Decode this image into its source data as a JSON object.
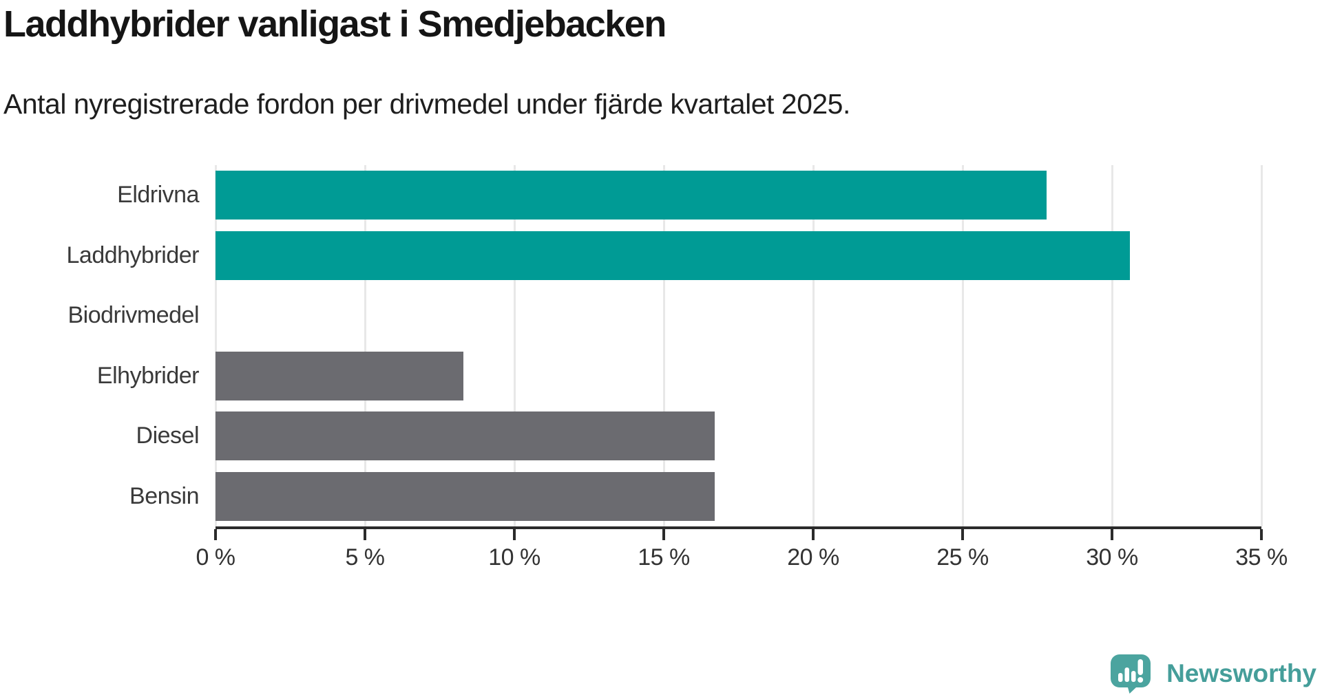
{
  "header": {
    "title": "Laddhybrider vanligast i Smedjebacken",
    "subtitle": "Antal nyregistrerade fordon per drivmedel under fjärde kvartalet 2025."
  },
  "chart_data": {
    "type": "bar",
    "orientation": "horizontal",
    "title": "Laddhybrider vanligast i Smedjebacken",
    "subtitle": "Antal nyregistrerade fordon per drivmedel under fjärde kvartalet 2025.",
    "categories": [
      "Eldrivna",
      "Laddhybrider",
      "Biodrivmedel",
      "Elhybrider",
      "Diesel",
      "Bensin"
    ],
    "values": [
      27.8,
      30.6,
      0,
      8.3,
      16.7,
      16.7
    ],
    "unit": "%",
    "bar_colors": [
      "#009b95",
      "#009b95",
      "#6b6b70",
      "#6b6b70",
      "#6b6b70",
      "#6b6b70"
    ],
    "xlim": [
      0,
      35
    ],
    "xticks": [
      0,
      5,
      10,
      15,
      20,
      25,
      30,
      35
    ],
    "xtick_labels": [
      "0 %",
      "5 %",
      "10 %",
      "15 %",
      "20 %",
      "25 %",
      "30 %",
      "35 %"
    ],
    "grid": true,
    "legend": false
  },
  "colors": {
    "highlight": "#009b95",
    "neutral": "#6b6b70",
    "axis": "#2b2b2b",
    "gridline": "#e8e8e8",
    "brand": "#459e9a"
  },
  "footer": {
    "brand": "Newsworthy",
    "logo_icon": "newsworthy-speech-bubble-bar-chart-icon"
  }
}
